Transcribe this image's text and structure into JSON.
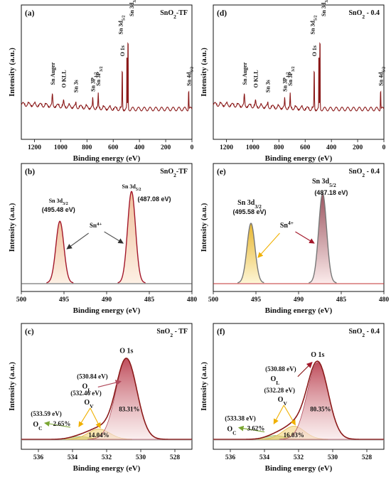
{
  "colors": {
    "survey_line": "#8b1a1a",
    "sn_peak_fill": "#f5d9c2",
    "sn_peak_stroke": "#a3172a",
    "sn_peak_fill_yellow": "#f3dc8c",
    "o_lattice_fill": "#dc8e97",
    "o_vacancy_fill": "#f3dc8c",
    "o_chem_fill": "#c9d9a0",
    "envelope": "#8b1a1a",
    "arrow_red": "#a3172a",
    "arrow_yellow": "#f0b000",
    "arrow_green": "#7aa632",
    "background": "#555555"
  },
  "panels": [
    {
      "label": "(a)",
      "title": "SnO2-TF",
      "type": "survey",
      "xlabel": "Binding energy (eV)",
      "ylabel": "Intensity (a.u.)",
      "xlim": [
        1300,
        0
      ],
      "xticks": [
        1200,
        1000,
        800,
        600,
        400,
        200,
        0
      ],
      "peak_labels": [
        {
          "text": "Sn Auger",
          "x": 1063
        },
        {
          "text": "O KLL",
          "x": 978
        },
        {
          "text": "Sn 3s",
          "x": 885
        },
        {
          "text": "Sn 3P1/2",
          "x": 756
        },
        {
          "text": "Sn 3P3/2",
          "x": 714
        },
        {
          "text": "O 1s",
          "x": 531
        },
        {
          "text": "Sn 3d5/2",
          "x": 495
        },
        {
          "text": "Sn 3d3/2",
          "x": 487
        },
        {
          "text": "Sn 4d5/2",
          "x": 25
        }
      ]
    },
    {
      "label": "(d)",
      "title": "SnO2 - 0.4",
      "type": "survey",
      "xlabel": "Binding energy (eV)",
      "ylabel": "Intensity (a.u.)",
      "xlim": [
        1300,
        0
      ],
      "xticks": [
        1200,
        1000,
        800,
        600,
        400,
        200,
        0
      ],
      "peak_labels": [
        {
          "text": "Sn Auger",
          "x": 1063
        },
        {
          "text": "O KLL",
          "x": 978
        },
        {
          "text": "Sn 3s",
          "x": 885
        },
        {
          "text": "Sn 3P1/2",
          "x": 756
        },
        {
          "text": "Sn 3P3/2",
          "x": 714
        },
        {
          "text": "O 1s",
          "x": 531
        },
        {
          "text": "Sn 3d5/2",
          "x": 495
        },
        {
          "text": "Sn 3d3/2",
          "x": 487
        },
        {
          "text": "Sn 4d5/2",
          "x": 25
        }
      ]
    },
    {
      "label": "(b)",
      "title": "SnO2-TF",
      "type": "sn3d",
      "xlabel": "Binding energy (eV)",
      "ylabel": "Intensity (a.u.)",
      "xlim": [
        500,
        480
      ],
      "xticks": [
        500,
        495,
        490,
        485,
        480
      ],
      "peaks": [
        {
          "name": "Sn 3d3/2",
          "center": 495.48,
          "value_label": "(495.48 eV)"
        },
        {
          "name": "Sn 3d5/2",
          "center": 487.08,
          "value_label": "(487.08 eV)"
        }
      ],
      "annotation": "Sn4+"
    },
    {
      "label": "(e)",
      "title": "SnO2 - 0.4",
      "type": "sn3d",
      "xlabel": "Binding energy (eV)",
      "ylabel": "Intensity (a.u.)",
      "xlim": [
        500,
        480
      ],
      "xticks": [
        500,
        495,
        490,
        485,
        480
      ],
      "peaks": [
        {
          "name": "Sn 3d3/2",
          "center": 495.58,
          "value_label": "(495.58 eV)"
        },
        {
          "name": "Sn 3d5/2",
          "center": 487.18,
          "value_label": "(487.18 eV)"
        }
      ],
      "annotation": "Sn4+"
    },
    {
      "label": "(c)",
      "title": "SnO2 - TF",
      "type": "o1s",
      "xlabel": "Binding energy (eV)",
      "ylabel": "Intensity (a.u.)",
      "xlim": [
        537,
        527
      ],
      "xticks": [
        536,
        534,
        532,
        530,
        528
      ],
      "main_label": "O 1s",
      "components": [
        {
          "name": "OL",
          "center": 530.84,
          "value_label": "(530.84 eV)",
          "percent": "83.31%"
        },
        {
          "name": "OV",
          "center": 532.46,
          "value_label": "(532.46 eV)",
          "percent": "14.04%"
        },
        {
          "name": "OC",
          "center": 533.59,
          "value_label": "(533.59 eV)",
          "percent": "2.65%"
        }
      ]
    },
    {
      "label": "(f)",
      "title": "SnO2 - 0.4",
      "type": "o1s",
      "xlabel": "Binding energy (eV)",
      "ylabel": "Intensity (a.u.)",
      "xlim": [
        537,
        527
      ],
      "xticks": [
        536,
        534,
        532,
        530,
        528
      ],
      "main_label": "O 1s",
      "components": [
        {
          "name": "OL",
          "center": 530.88,
          "value_label": "(530.88 eV)",
          "percent": "80.35%"
        },
        {
          "name": "OV",
          "center": 532.28,
          "value_label": "(532.28 eV)",
          "percent": "16.03%"
        },
        {
          "name": "OC",
          "center": 533.38,
          "value_label": "(533.38 eV)",
          "percent": "3.62%"
        }
      ]
    }
  ],
  "chart_data": [
    {
      "type": "line",
      "panel": "(a)",
      "title": "SnO2-TF",
      "xlabel": "Binding energy (eV)",
      "ylabel": "Intensity (a.u.)",
      "xlim": [
        1300,
        0
      ],
      "series": [
        {
          "x": [
            1300,
            1063,
            978,
            885,
            756,
            714,
            531,
            495,
            487,
            25,
            0
          ],
          "values": [
            0.1,
            0.22,
            0.17,
            0.14,
            0.18,
            0.24,
            0.52,
            0.75,
            0.95,
            0.3,
            0.06
          ]
        }
      ]
    },
    {
      "type": "line",
      "panel": "(d)",
      "title": "SnO2 - 0.4",
      "xlabel": "Binding energy (eV)",
      "ylabel": "Intensity (a.u.)",
      "xlim": [
        1300,
        0
      ],
      "series": [
        {
          "x": [
            1300,
            1063,
            978,
            885,
            756,
            714,
            531,
            495,
            487,
            25,
            0
          ],
          "values": [
            0.1,
            0.22,
            0.17,
            0.14,
            0.18,
            0.24,
            0.53,
            0.74,
            0.95,
            0.28,
            0.06
          ]
        }
      ]
    },
    {
      "type": "area",
      "panel": "(b)",
      "title": "SnO2-TF",
      "xlabel": "Binding energy (eV)",
      "ylabel": "Intensity (a.u.)",
      "xlim": [
        500,
        480
      ],
      "series": [
        {
          "name": "Sn 3d3/2",
          "center": 495.48,
          "height": 0.62,
          "fwhm": 1.1
        },
        {
          "name": "Sn 3d5/2",
          "center": 487.08,
          "height": 0.92,
          "fwhm": 1.1
        }
      ]
    },
    {
      "type": "area",
      "panel": "(e)",
      "title": "SnO2 - 0.4",
      "xlabel": "Binding energy (eV)",
      "ylabel": "Intensity (a.u.)",
      "xlim": [
        500,
        480
      ],
      "series": [
        {
          "name": "Sn 3d3/2",
          "center": 495.58,
          "height": 0.6,
          "fwhm": 1.1
        },
        {
          "name": "Sn 3d5/2",
          "center": 487.18,
          "height": 0.9,
          "fwhm": 1.1
        }
      ]
    },
    {
      "type": "area",
      "panel": "(c)",
      "title": "SnO2 - TF",
      "xlabel": "Binding energy (eV)",
      "ylabel": "Intensity (a.u.)",
      "xlim": [
        537,
        527
      ],
      "series": [
        {
          "name": "OL",
          "center": 530.84,
          "height": 0.86,
          "fwhm": 1.45
        },
        {
          "name": "OV",
          "center": 532.46,
          "height": 0.11,
          "fwhm": 1.5
        },
        {
          "name": "OC",
          "center": 533.59,
          "height": 0.03,
          "fwhm": 1.3
        }
      ]
    },
    {
      "type": "area",
      "panel": "(f)",
      "title": "SnO2 - 0.4",
      "xlabel": "Binding energy (eV)",
      "ylabel": "Intensity (a.u.)",
      "xlim": [
        537,
        527
      ],
      "series": [
        {
          "name": "OL",
          "center": 530.88,
          "height": 0.82,
          "fwhm": 1.45
        },
        {
          "name": "OV",
          "center": 532.28,
          "height": 0.14,
          "fwhm": 1.5
        },
        {
          "name": "OC",
          "center": 533.38,
          "height": 0.04,
          "fwhm": 1.3
        }
      ]
    }
  ]
}
